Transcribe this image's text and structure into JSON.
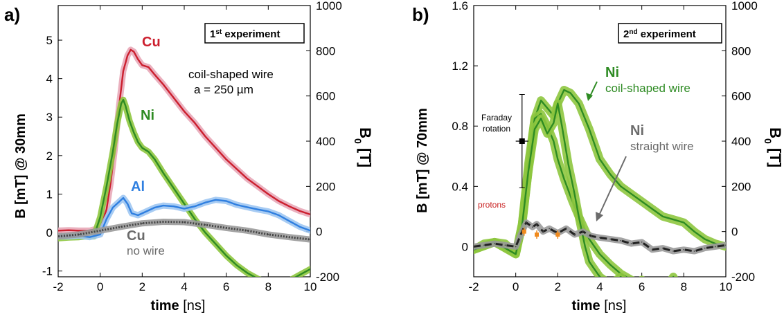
{
  "figure": {
    "colors": {
      "cu": "#cc1f2e",
      "cu_band": "#e8a9b8",
      "ni": "#2e8b23",
      "ni_band": "#8ec63f",
      "al": "#2f7fe0",
      "al_band": "#9fc7f2",
      "nowire": "#444444",
      "nowire_band": "#9a9a9a",
      "proton": "#f08a1e",
      "label_gray": "#6b6b6b",
      "proton_label": "#c81e1e"
    }
  },
  "chart_data": [
    {
      "panel_label": "a)",
      "type": "line",
      "xlabel_bold": "time",
      "xlabel_unit": " [ns]",
      "ylabel_left": "B [mT]   @ 30mm",
      "ylabel_right": "B",
      "ylabel_right_sub": "0",
      "ylabel_right_unit": " [T]",
      "xlim": [
        -2,
        10
      ],
      "ylim": [
        -1.15,
        5.9
      ],
      "ylim_right": [
        -200,
        1000
      ],
      "x_ticks": [
        -2,
        0,
        2,
        4,
        6,
        8,
        10
      ],
      "y_ticks": [
        -1,
        0,
        1,
        2,
        3,
        4,
        5
      ],
      "y_ticks_right": [
        -200,
        0,
        200,
        400,
        600,
        800,
        1000
      ],
      "legend_box": {
        "main": "1",
        "sup": "st",
        "rest": " experiment"
      },
      "annotations": [
        {
          "text": "Cu",
          "series": "Cu"
        },
        {
          "text": "Ni",
          "series": "Ni"
        },
        {
          "text": "Al",
          "series": "Al"
        },
        {
          "text": "Cu",
          "series": "no wire"
        },
        {
          "text": "no wire",
          "series": "no wire"
        },
        {
          "text": "coil-shaped wire",
          "series": ""
        },
        {
          "text": "a = 250 µm",
          "series": ""
        }
      ],
      "series": [
        {
          "name": "Cu",
          "color_key": "cu",
          "x": [
            -2,
            -1.5,
            -1,
            -0.5,
            0,
            0.3,
            0.5,
            0.7,
            0.9,
            1.1,
            1.2,
            1.3,
            1.45,
            1.6,
            1.8,
            2.0,
            2.3,
            2.6,
            3.0,
            3.5,
            4.0,
            4.5,
            5.0,
            5.5,
            6.0,
            6.5,
            7.0,
            7.5,
            8.0,
            8.5,
            9.0,
            9.5,
            10.0
          ],
          "y": [
            0.05,
            0.06,
            0.05,
            0.05,
            0.12,
            0.6,
            1.3,
            2.2,
            3.3,
            4.2,
            4.4,
            4.6,
            4.75,
            4.7,
            4.5,
            4.35,
            4.3,
            4.1,
            3.85,
            3.5,
            3.15,
            2.85,
            2.5,
            2.2,
            1.9,
            1.65,
            1.4,
            1.2,
            1.0,
            0.82,
            0.68,
            0.56,
            0.47
          ]
        },
        {
          "name": "Ni",
          "color_key": "ni",
          "x": [
            -2,
            -1.5,
            -1,
            -0.7,
            -0.3,
            0,
            0.3,
            0.6,
            0.8,
            1.0,
            1.1,
            1.2,
            1.4,
            1.6,
            1.8,
            2.0,
            2.3,
            2.6,
            3.0,
            3.5,
            4.0,
            4.5,
            5.0,
            5.5,
            6.0,
            6.5,
            7.0,
            7.5,
            8.0,
            8.5,
            9.0,
            9.5,
            10.0
          ],
          "y": [
            -0.15,
            -0.13,
            -0.12,
            -0.1,
            -0.1,
            0.4,
            1.2,
            2.1,
            2.8,
            3.35,
            3.45,
            3.3,
            2.9,
            2.6,
            2.35,
            2.2,
            2.1,
            1.9,
            1.55,
            1.15,
            0.75,
            0.35,
            0.0,
            -0.3,
            -0.6,
            -0.85,
            -1.05,
            -1.2,
            -1.3,
            -1.3,
            -1.25,
            -1.1,
            -0.95
          ]
        },
        {
          "name": "Al",
          "color_key": "al",
          "x": [
            -2,
            -1.5,
            -1,
            -0.5,
            0,
            0.3,
            0.6,
            0.9,
            1.1,
            1.3,
            1.5,
            1.8,
            2.2,
            2.6,
            3.0,
            3.5,
            4.0,
            4.5,
            5.0,
            5.5,
            6.0,
            6.5,
            7.0,
            7.5,
            8.0,
            8.5,
            9.0,
            9.5,
            10.0
          ],
          "y": [
            -0.1,
            -0.1,
            -0.08,
            -0.12,
            -0.05,
            0.35,
            0.65,
            0.8,
            0.9,
            0.75,
            0.5,
            0.45,
            0.55,
            0.65,
            0.7,
            0.68,
            0.62,
            0.68,
            0.78,
            0.85,
            0.82,
            0.72,
            0.66,
            0.6,
            0.55,
            0.45,
            0.3,
            0.15,
            0.05
          ]
        },
        {
          "name": "no wire",
          "color_key": "nowire",
          "x": [
            -2,
            -1,
            0,
            1,
            2,
            3,
            4,
            5,
            6,
            7,
            8,
            9,
            10
          ],
          "y": [
            -0.1,
            -0.05,
            0.05,
            0.15,
            0.24,
            0.28,
            0.27,
            0.2,
            0.12,
            0.05,
            -0.05,
            -0.12,
            -0.18
          ]
        }
      ]
    },
    {
      "panel_label": "b)",
      "type": "line",
      "xlabel_bold": "time",
      "xlabel_unit": " [ns]",
      "ylabel_left": "B [mT]   @ 70mm",
      "ylabel_right": "B",
      "ylabel_right_sub": "0",
      "ylabel_right_unit": " [T]",
      "xlim": [
        -2,
        10
      ],
      "ylim": [
        -0.2,
        1.6
      ],
      "ylim_right": [
        -200,
        1000
      ],
      "x_ticks": [
        -2,
        0,
        2,
        4,
        6,
        8,
        10
      ],
      "y_ticks": [
        0,
        0.4,
        0.8,
        1.2,
        1.6
      ],
      "y_ticks_right": [
        -200,
        0,
        200,
        400,
        600,
        800,
        1000
      ],
      "legend_box": {
        "main": "2",
        "sup": "nd",
        "rest": " experiment"
      },
      "annotations": [
        {
          "text": "Ni",
          "series": "Ni coil-shaped wire"
        },
        {
          "text": "coil-shaped wire",
          "series": "Ni coil-shaped wire"
        },
        {
          "text": "Ni",
          "series": "Ni straight wire"
        },
        {
          "text": "straight wire",
          "series": "Ni straight wire"
        },
        {
          "text": "Faraday",
          "series": "Faraday rotation"
        },
        {
          "text": "rotation",
          "series": "Faraday rotation"
        },
        {
          "text": "protons",
          "series": "protons"
        }
      ],
      "faraday_point": {
        "x": 0.3,
        "y": 0.7,
        "yerr": 0.31,
        "xerr": 0.3
      },
      "proton_points": {
        "x": [
          0.4,
          1.0,
          2.0
        ],
        "y": [
          0.1,
          0.08,
          0.08
        ]
      },
      "series": [
        {
          "name": "Ni coil-shaped wire",
          "color_key": "ni",
          "x": [
            -2,
            -1.5,
            -1,
            -0.5,
            0,
            0.3,
            0.6,
            0.9,
            1.2,
            1.5,
            1.8,
            2.0,
            2.3,
            2.6,
            3.0,
            3.5,
            4.0,
            4.5,
            5.0,
            5.5,
            6.0,
            6.5,
            7.0,
            7.5,
            8.0,
            8.5,
            9.0,
            9.5,
            10.0
          ],
          "y": [
            -0.02,
            0.02,
            0.03,
            0.02,
            -0.05,
            0.15,
            0.5,
            0.85,
            0.97,
            0.92,
            0.87,
            0.95,
            1.04,
            1.02,
            0.95,
            0.78,
            0.58,
            0.48,
            0.4,
            0.35,
            0.3,
            0.25,
            0.2,
            0.18,
            0.16,
            0.1,
            0.05,
            0.02,
            0.0
          ]
        },
        {
          "name": "Ni coil-shaped wire (2)",
          "color_key": "ni",
          "x": [
            -2,
            -1,
            0,
            0.3,
            0.6,
            0.9,
            1.2,
            1.5,
            1.8,
            2.0,
            2.3,
            2.7,
            3.0,
            3.5,
            4.0,
            4.5,
            5.0,
            5.5,
            6.0,
            6.5,
            7.0,
            7.5,
            8.0,
            9.0,
            10.0
          ],
          "y": [
            -0.02,
            0.03,
            -0.05,
            0.15,
            0.55,
            0.85,
            0.88,
            0.8,
            0.7,
            0.58,
            0.45,
            0.3,
            0.2,
            0.05,
            -0.05,
            -0.12,
            -0.18,
            -0.22,
            -0.25,
            -0.26,
            -0.27,
            -0.28,
            -0.3,
            -0.3,
            -0.3
          ]
        },
        {
          "name": "Ni coil-shaped wire (3)",
          "color_key": "ni",
          "x": [
            -2,
            -1,
            0,
            0.3,
            0.6,
            0.9,
            1.2,
            1.5,
            1.8,
            2.0,
            2.2,
            2.5,
            2.8,
            3.0,
            3.3,
            3.5,
            4.0,
            4.5,
            5.0,
            5.5,
            6.0,
            6.5,
            7.0,
            7.5,
            8.0,
            9.0,
            10.0
          ],
          "y": [
            -0.02,
            0.03,
            -0.05,
            0.14,
            0.5,
            0.78,
            0.85,
            0.75,
            0.82,
            0.95,
            0.8,
            0.55,
            0.35,
            0.2,
            0.0,
            -0.1,
            -0.2,
            -0.25,
            -0.2,
            -0.28,
            -0.22,
            -0.3,
            -0.3,
            -0.2,
            -0.35,
            -0.4,
            -0.48
          ]
        },
        {
          "name": "Ni straight wire",
          "color_key": "nowire",
          "x": [
            -2,
            -1.5,
            -1,
            -0.5,
            0,
            0.3,
            0.5,
            0.8,
            1.0,
            1.3,
            1.6,
            2.0,
            2.4,
            2.8,
            3.2,
            3.6,
            4.0,
            4.5,
            5.0,
            5.5,
            6.0,
            6.5,
            7.0,
            7.5,
            8.0,
            8.5,
            9.0,
            9.5,
            10.0
          ],
          "y": [
            0.0,
            0.01,
            0.02,
            0.01,
            0.0,
            0.1,
            0.16,
            0.13,
            0.15,
            0.1,
            0.12,
            0.09,
            0.12,
            0.08,
            0.1,
            0.07,
            0.06,
            0.05,
            0.04,
            0.02,
            0.03,
            -0.02,
            -0.01,
            -0.03,
            -0.02,
            -0.03,
            -0.01,
            0.0,
            0.01
          ]
        }
      ]
    }
  ]
}
